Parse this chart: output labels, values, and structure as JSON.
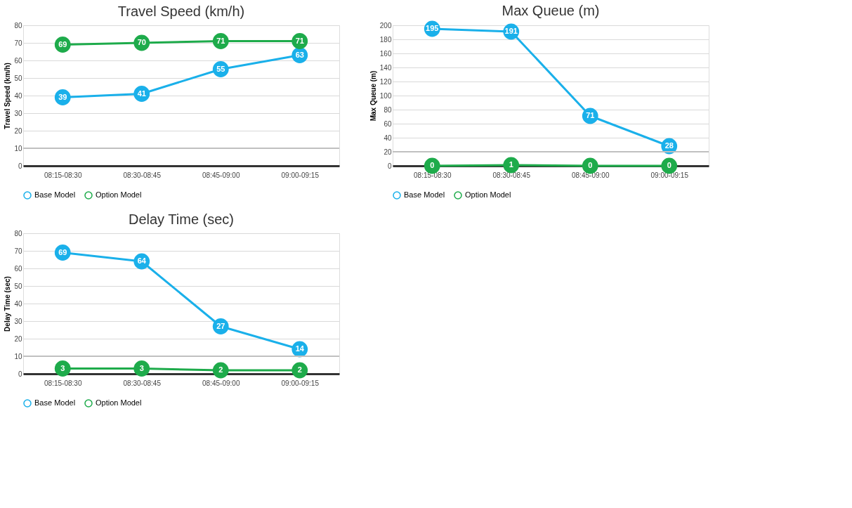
{
  "chart_data": [
    {
      "type": "line",
      "title": "Travel Speed (km/h)",
      "ylabel": "Travel Speed (km/h)",
      "categories": [
        "08:15-08:30",
        "08:30-08:45",
        "08:45-09:00",
        "09:00-09:15"
      ],
      "series": [
        {
          "name": "Base Model",
          "color": "#1ab0ea",
          "values": [
            39,
            41,
            55,
            63
          ]
        },
        {
          "name": "Option Model",
          "color": "#1eab4b",
          "values": [
            69,
            70,
            71,
            71
          ]
        }
      ],
      "ylim": [
        0,
        80
      ],
      "yticks": [
        0,
        10,
        20,
        30,
        40,
        50,
        60,
        70,
        80
      ],
      "grid": "y",
      "legend": "bottom",
      "marker": "circle",
      "data_labels": true,
      "ref_lines": [
        {
          "axis": "y",
          "value": 10,
          "color": "#c0c0c0"
        }
      ]
    },
    {
      "type": "line",
      "title": "Max Queue (m)",
      "ylabel": "Max Queue (m)",
      "categories": [
        "08:15-08:30",
        "08:30-08:45",
        "08:45-09:00",
        "09:00-09:15"
      ],
      "series": [
        {
          "name": "Base Model",
          "color": "#1ab0ea",
          "values": [
            195,
            191,
            71,
            28
          ]
        },
        {
          "name": "Option Model",
          "color": "#1eab4b",
          "values": [
            0,
            1,
            0,
            0
          ]
        }
      ],
      "ylim": [
        0,
        200
      ],
      "yticks": [
        0,
        20,
        40,
        60,
        80,
        100,
        120,
        140,
        160,
        180,
        200
      ],
      "grid": "y",
      "legend": "bottom",
      "marker": "circle",
      "data_labels": true,
      "ref_lines": [
        {
          "axis": "y",
          "value": 20,
          "color": "#c0c0c0"
        }
      ]
    },
    {
      "type": "line",
      "title": "Delay Time (sec)",
      "ylabel": "Delay Time (sec)",
      "categories": [
        "08:15-08:30",
        "08:30-08:45",
        "08:45-09:00",
        "09:00-09:15"
      ],
      "series": [
        {
          "name": "Base Model",
          "color": "#1ab0ea",
          "values": [
            69,
            64,
            27,
            14
          ]
        },
        {
          "name": "Option Model",
          "color": "#1eab4b",
          "values": [
            3,
            3,
            2,
            2
          ]
        }
      ],
      "ylim": [
        0,
        80
      ],
      "yticks": [
        0,
        10,
        20,
        30,
        40,
        50,
        60,
        70,
        80
      ],
      "grid": "y",
      "legend": "bottom",
      "marker": "circle",
      "data_labels": true,
      "ref_lines": [
        {
          "axis": "y",
          "value": 10,
          "color": "#c0c0c0"
        }
      ]
    }
  ]
}
